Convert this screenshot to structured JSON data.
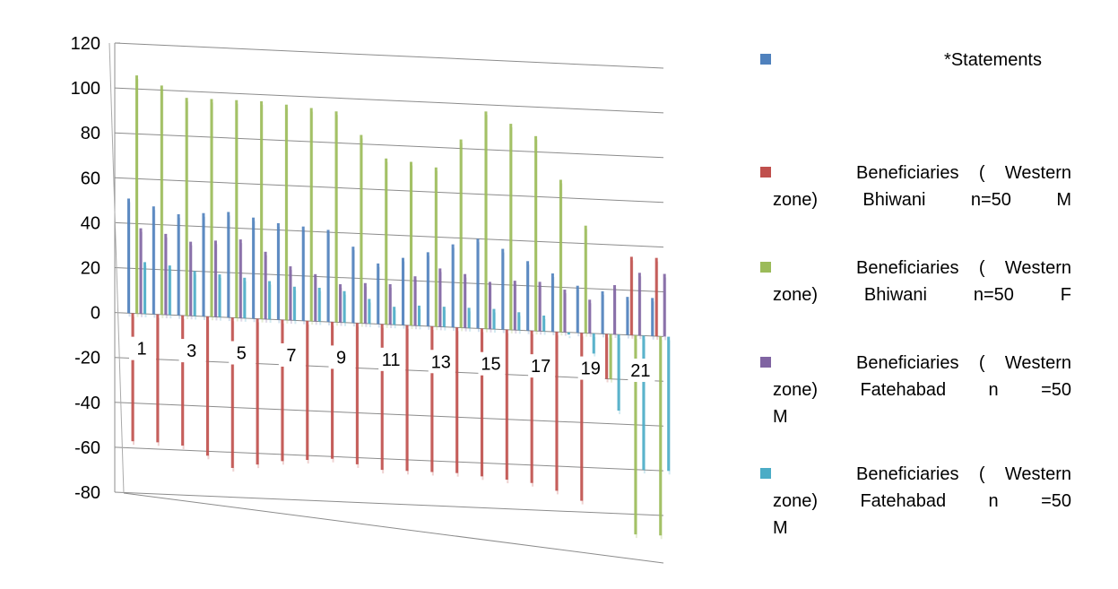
{
  "chart_data": {
    "type": "bar",
    "title": "",
    "xlabel": "",
    "ylabel": "",
    "ylim": [
      -80,
      120
    ],
    "yticks": [
      120,
      100,
      80,
      60,
      40,
      20,
      0,
      -20,
      -40,
      -60,
      -80
    ],
    "categories": [
      "1",
      "3",
      "5",
      "7",
      "9",
      "11",
      "13",
      "15",
      "17",
      "19",
      "21"
    ],
    "grid": true,
    "legend_position": "right",
    "legend": [
      {
        "lines": [
          "*Statements"
        ],
        "color": "#4F81BD"
      },
      {
        "lines": [
          "Beneficiaries ( Western",
          "zone)  Bhiwani  n=50 M"
        ],
        "color": "#C0504D"
      },
      {
        "lines": [
          "Beneficiaries ( Western",
          "zone)  Bhiwani  n=50 F"
        ],
        "color": "#9BBB59"
      },
      {
        "lines": [
          "Beneficiaries ( Western",
          "zone)  Fatehabad  n =50",
          "M"
        ],
        "color": "#8064A2"
      },
      {
        "lines": [
          "Beneficiaries ( Western",
          "zone)  Fatehabad  n =50",
          "M"
        ],
        "color": "#4BACC6"
      }
    ],
    "series": [
      {
        "name": "*Statements",
        "color": "#4F81BD",
        "values": [
          51,
          45,
          47,
          43,
          41,
          27,
          33,
          40,
          31,
          21,
          17
        ]
      },
      {
        "name": "Beneficiaries ( Western zone) Bhiwani n=50 M",
        "color": "#C0504D",
        "values": [
          -57,
          -58,
          -67,
          -63,
          -61,
          -65,
          -65,
          -66,
          -68,
          -75,
          35
        ]
      },
      {
        "name": "Beneficiaries ( Western zone) Bhiwani n=50 F",
        "color": "#9BBB59",
        "values": [
          106,
          97,
          97,
          96,
          94,
          74,
          71,
          97,
          87,
          48,
          -89
        ]
      },
      {
        "name": "Beneficiaries ( Western zone) Fatehabad n =50 M",
        "color": "#8064A2",
        "values": [
          38,
          33,
          35,
          24,
          17,
          18,
          26,
          21,
          22,
          15,
          28
        ]
      },
      {
        "name": "Beneficiaries ( Western zone) Fatehabad n =50 M",
        "color": "#4BACC6",
        "values": [
          23,
          20,
          18,
          15,
          14,
          8,
          9,
          9,
          7,
          -9,
          -60
        ]
      }
    ]
  }
}
